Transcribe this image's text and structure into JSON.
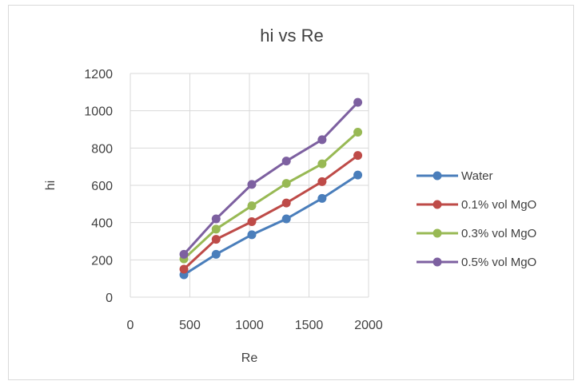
{
  "chart_data": {
    "type": "line",
    "title": "hi vs Re",
    "xlabel": "Re",
    "ylabel": "hi",
    "xlim": [
      0,
      2000
    ],
    "ylim": [
      0,
      1200
    ],
    "xticks": [
      0,
      500,
      1000,
      1500,
      2000
    ],
    "yticks": [
      0,
      200,
      400,
      600,
      800,
      1000,
      1200
    ],
    "grid": true,
    "legend_position": "right",
    "series": [
      {
        "name": "Water",
        "color": "#4a7ebb",
        "x": [
          450,
          720,
          1020,
          1310,
          1610,
          1910
        ],
        "y": [
          120,
          230,
          335,
          420,
          530,
          655
        ]
      },
      {
        "name": "0.1% vol MgO",
        "color": "#be4b48",
        "x": [
          450,
          720,
          1020,
          1310,
          1610,
          1910
        ],
        "y": [
          150,
          310,
          405,
          505,
          620,
          760
        ]
      },
      {
        "name": "0.3% vol MgO",
        "color": "#98b954",
        "x": [
          450,
          720,
          1020,
          1310,
          1610,
          1910
        ],
        "y": [
          205,
          365,
          490,
          610,
          715,
          885
        ]
      },
      {
        "name": "0.5% vol MgO",
        "color": "#7d60a0",
        "x": [
          450,
          720,
          1020,
          1310,
          1610,
          1910
        ],
        "y": [
          230,
          420,
          605,
          730,
          845,
          1045
        ]
      }
    ]
  }
}
